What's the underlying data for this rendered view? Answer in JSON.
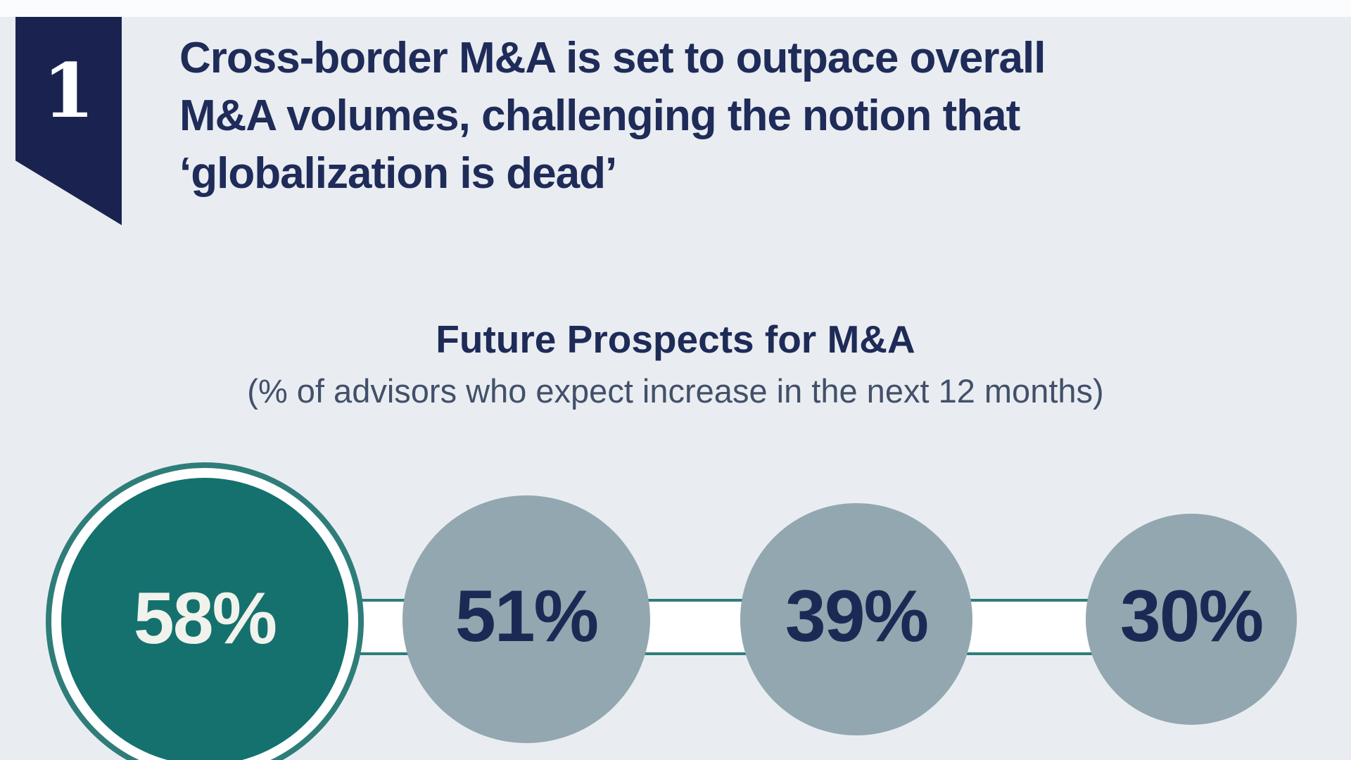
{
  "page": {
    "background_color": "#e9edf1",
    "top_strip_color": "#fbfcfd"
  },
  "section_marker": {
    "number": "1",
    "ribbon_color": "#1a2350",
    "number_color": "#ffffff"
  },
  "heading": {
    "color": "#1f2b58",
    "lines": [
      "Cross-border M&A is set to outpace overall",
      "M&A volumes, challenging the notion that",
      "‘globalization is dead’"
    ]
  },
  "chart_data": {
    "type": "bar",
    "title": "Future Prospects for M&A",
    "subtitle": "(% of advisors who expect increase in the next 12 months)",
    "values": [
      58,
      51,
      39,
      30
    ],
    "labels": [
      "58%",
      "51%",
      "39%",
      "30%"
    ],
    "unit": "%",
    "highlight_index": 0,
    "highlight_color": "#14716e",
    "highlight_ring_color": "#2e7d79",
    "default_circle_color": "#93a7b0",
    "label_color_on_highlight": "#f2f2ec",
    "label_color_on_default": "#1b2a55",
    "connector_fill": "#ffffff",
    "connector_border_color": "#2e7d79",
    "legend": "none",
    "notes": "proportional circles connected by a horizontal band; circle size encodes value"
  }
}
